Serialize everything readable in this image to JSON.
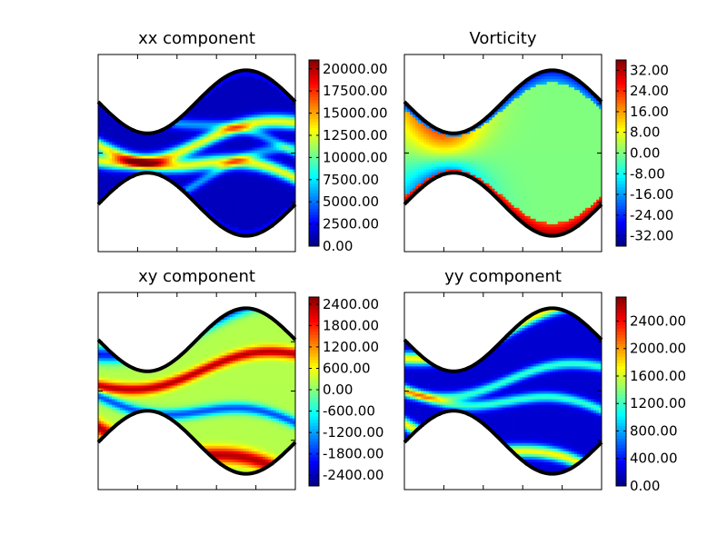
{
  "chart_data": [
    {
      "type": "heatmap",
      "title": "xx component",
      "colormap": "jet",
      "colorbar": {
        "vmin": 0,
        "vmax": 21000,
        "ticks": [
          "0.00",
          "2500.00",
          "5000.00",
          "7500.00",
          "10000.00",
          "12500.00",
          "15000.00",
          "17500.00",
          "20000.00"
        ]
      },
      "field": "xx"
    },
    {
      "type": "heatmap",
      "title": "Vorticity",
      "colormap": "jet",
      "colorbar": {
        "vmin": -36,
        "vmax": 36,
        "ticks": [
          "-32.00",
          "-24.00",
          "-16.00",
          "-8.00",
          "0.00",
          "8.00",
          "16.00",
          "24.00",
          "32.00"
        ]
      },
      "field": "vorticity"
    },
    {
      "type": "heatmap",
      "title": "xy component",
      "colormap": "jet",
      "colorbar": {
        "vmin": -2700,
        "vmax": 2600,
        "ticks": [
          "-2400.00",
          "-1800.00",
          "-1200.00",
          "-600.00",
          "0.00",
          "600.00",
          "1200.00",
          "1800.00",
          "2400.00"
        ]
      },
      "field": "xy"
    },
    {
      "type": "heatmap",
      "title": "yy component",
      "colormap": "jet",
      "colorbar": {
        "vmin": 0,
        "vmax": 2750,
        "ticks": [
          "0.00",
          "400.00",
          "800.00",
          "1200.00",
          "1600.00",
          "2000.00",
          "2400.00"
        ]
      },
      "field": "yy"
    }
  ]
}
